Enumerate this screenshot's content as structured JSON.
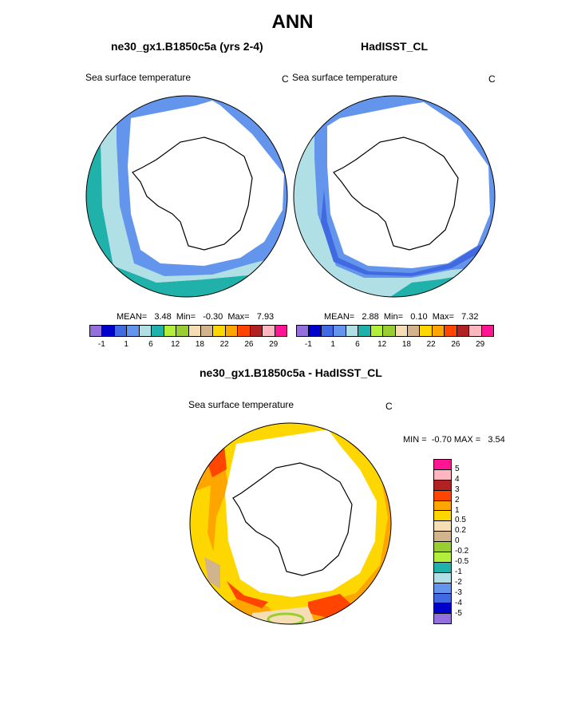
{
  "title": "ANN",
  "panel_left": {
    "subtitle": "ne30_gx1.B1850c5a (yrs 2-4)",
    "variable": "Sea surface temperature",
    "unit": "C",
    "stats": "MEAN=   3.48  Min=   -0.30  Max=   7.93"
  },
  "panel_right": {
    "subtitle": "HadISST_CL",
    "variable": "Sea surface temperature",
    "unit": "C",
    "stats": "MEAN=   2.88  Min=   0.10  Max=   7.32"
  },
  "panel_diff": {
    "subtitle": "ne30_gx1.B1850c5a - HadISST_CL",
    "variable": "Sea surface temperature",
    "unit": "C",
    "stats": "MIN =  -0.70 MAX =   3.54"
  },
  "colorbar_main": {
    "colors": [
      "#9370db",
      "#0000cd",
      "#4169e1",
      "#6495ed",
      "#b0e0e6",
      "#20b2aa",
      "#b3ee3a",
      "#9acd32",
      "#f5deb3",
      "#d2b48c",
      "#ffd700",
      "#ffa500",
      "#ff4500",
      "#b22222",
      "#ffb6c1",
      "#ff1493"
    ],
    "tick_labels": [
      "-1",
      "1",
      "6",
      "12",
      "18",
      "22",
      "26",
      "29"
    ]
  },
  "colorbar_diff": {
    "colors": [
      "#ff1493",
      "#ffb6c1",
      "#b22222",
      "#ff4500",
      "#ffa500",
      "#ffd700",
      "#f5deb3",
      "#d2b48c",
      "#9acd32",
      "#b3ee3a",
      "#20b2aa",
      "#b0e0e6",
      "#6495ed",
      "#4169e1",
      "#0000cd",
      "#9370db"
    ],
    "tick_labels": [
      "5",
      "4",
      "3",
      "2",
      "1",
      "0.5",
      "0.2",
      "0",
      "-0.2",
      "-0.5",
      "-1",
      "-2",
      "-3",
      "-4",
      "-5"
    ]
  }
}
